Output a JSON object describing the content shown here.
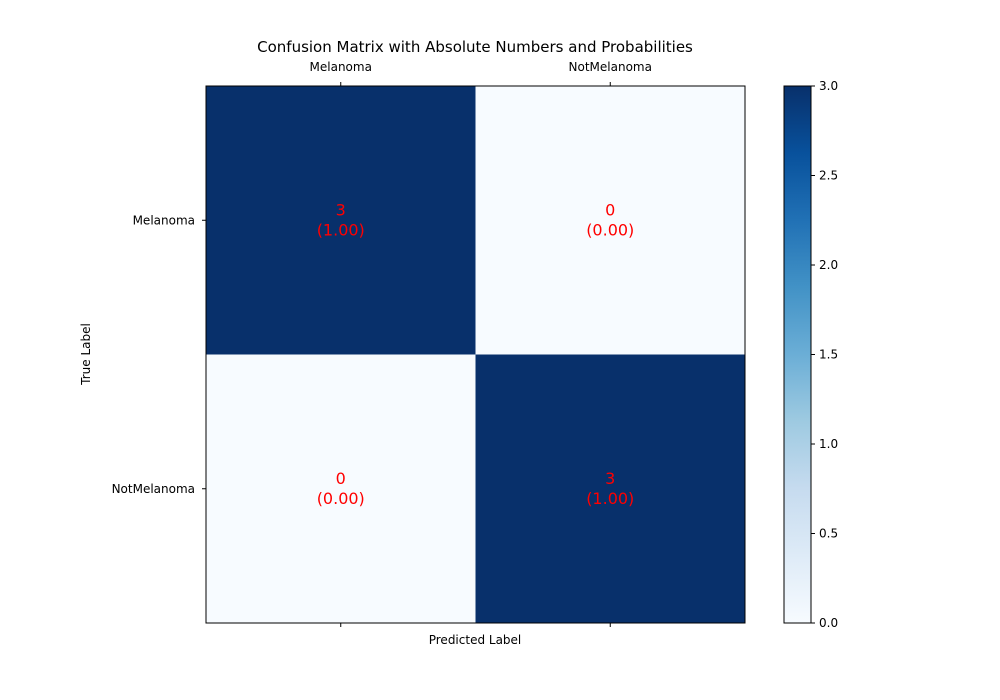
{
  "chart_data": {
    "type": "heatmap",
    "title": "Confusion Matrix with Absolute Numbers and Probabilities",
    "xlabel": "Predicted Label",
    "ylabel": "True Label",
    "x_categories": [
      "Melanoma",
      "NotMelanoma"
    ],
    "y_categories": [
      "Melanoma",
      "NotMelanoma"
    ],
    "values": [
      [
        3,
        0
      ],
      [
        0,
        3
      ]
    ],
    "probabilities": [
      [
        1.0,
        0.0
      ],
      [
        0.0,
        1.0
      ]
    ],
    "cell_labels": [
      [
        "3",
        "(1.00)",
        "0",
        "(0.00)"
      ],
      [
        "0",
        "(0.00)",
        "3",
        "(1.00)"
      ]
    ],
    "colorbar": {
      "range": [
        0,
        3
      ],
      "ticks": [
        "0.0",
        "0.5",
        "1.0",
        "1.5",
        "2.0",
        "2.5",
        "3.0"
      ],
      "colormap": "Blues",
      "low_color": "#f7fbff",
      "high_color": "#08306b"
    },
    "annotation_color": "#ff0000"
  }
}
